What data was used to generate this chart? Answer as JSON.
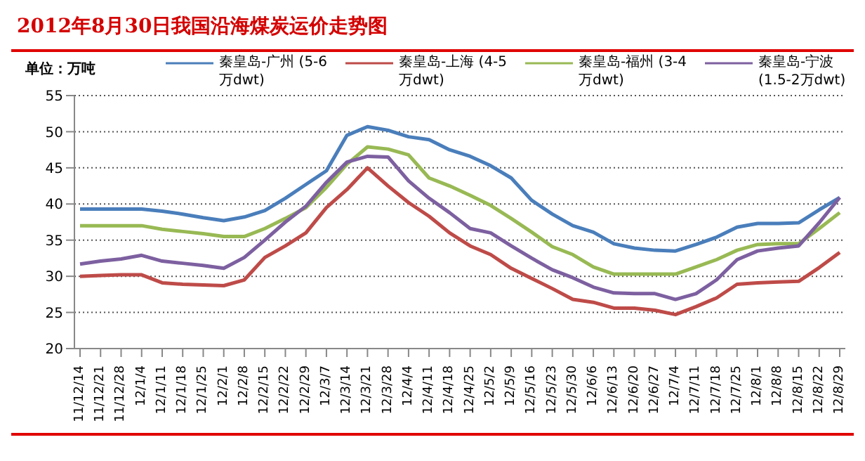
{
  "chart_data": {
    "type": "line",
    "title": "2012年8月30日我国沿海煤炭运价走势图",
    "ylabel": "单位：万吨",
    "categories": [
      "11/12/14",
      "11/12/21",
      "11/12/28",
      "12/1/4",
      "12/1/11",
      "12/1/18",
      "12/1/25",
      "12/2/1",
      "12/2/8",
      "12/2/15",
      "12/2/22",
      "12/2/29",
      "12/3/7",
      "12/3/14",
      "12/3/21",
      "12/3/28",
      "12/4/4",
      "12/4/11",
      "12/4/18",
      "12/4/25",
      "12/5/2",
      "12/5/9",
      "12/5/16",
      "12/5/23",
      "12/5/30",
      "12/6/6",
      "12/6/13",
      "12/6/20",
      "12/6/27",
      "12/7/4",
      "12/7/11",
      "12/7/18",
      "12/7/25",
      "12/8/1",
      "12/8/8",
      "12/8/15",
      "12/8/22",
      "12/8/29"
    ],
    "series": [
      {
        "name": "秦皇岛-广州 (5-6万dwt)",
        "color": "#4a7ebb",
        "values": [
          39.3,
          39.3,
          39.3,
          39.3,
          39,
          38.6,
          38.1,
          37.7,
          38.2,
          39.1,
          40.8,
          42.7,
          44.6,
          49.5,
          50.7,
          50.2,
          49.3,
          48.9,
          47.5,
          46.6,
          45.3,
          43.6,
          40.5,
          38.6,
          37,
          36.1,
          34.5,
          33.9,
          33.6,
          33.5,
          34.4,
          35.4,
          36.8,
          37.3,
          37.3,
          37.4,
          39.2,
          40.9
        ]
      },
      {
        "name": "秦皇岛-上海 (4-5万dwt)",
        "color": "#be4b48",
        "values": [
          30,
          30.1,
          30.2,
          30.2,
          29.1,
          28.9,
          28.8,
          28.7,
          29.5,
          32.6,
          34.2,
          36,
          39.5,
          42,
          45,
          42.5,
          40.2,
          38.3,
          36,
          34.2,
          33,
          31.1,
          29.7,
          28.3,
          26.8,
          26.4,
          25.6,
          25.6,
          25.3,
          24.7,
          25.8,
          27,
          28.9,
          29.1,
          29.2,
          29.3,
          31.2,
          33.3
        ]
      },
      {
        "name": "秦皇岛-福州 (3-4万dwt)",
        "color": "#98b954",
        "values": [
          37,
          37,
          37,
          37,
          36.5,
          36.2,
          35.9,
          35.5,
          35.5,
          36.6,
          38,
          39.5,
          42.3,
          45.5,
          47.9,
          47.6,
          46.8,
          43.6,
          42.5,
          41.2,
          39.8,
          38,
          36.1,
          34.1,
          33,
          31.3,
          30.3,
          30.3,
          30.3,
          30.3,
          31.3,
          32.3,
          33.6,
          34.4,
          34.5,
          34.5,
          36.6,
          38.8
        ]
      },
      {
        "name": "秦皇岛-宁波 (1.5-2万dwt)",
        "color": "#7d60a0",
        "values": [
          31.7,
          32.1,
          32.4,
          32.9,
          32.1,
          31.8,
          31.5,
          31.1,
          32.6,
          35,
          37.5,
          39.7,
          43,
          45.8,
          46.6,
          46.5,
          43.2,
          40.8,
          38.8,
          36.6,
          36,
          34.2,
          32.5,
          30.9,
          29.8,
          28.5,
          27.7,
          27.6,
          27.6,
          26.8,
          27.6,
          29.5,
          32.3,
          33.5,
          33.9,
          34.2,
          37.4,
          40.9
        ]
      }
    ],
    "ylim": [
      20,
      55
    ],
    "yticks": [
      20,
      25,
      30,
      35,
      40,
      45,
      50,
      55
    ],
    "grid": "y",
    "legend": "top",
    "marker": "none",
    "line_style": "solid"
  }
}
